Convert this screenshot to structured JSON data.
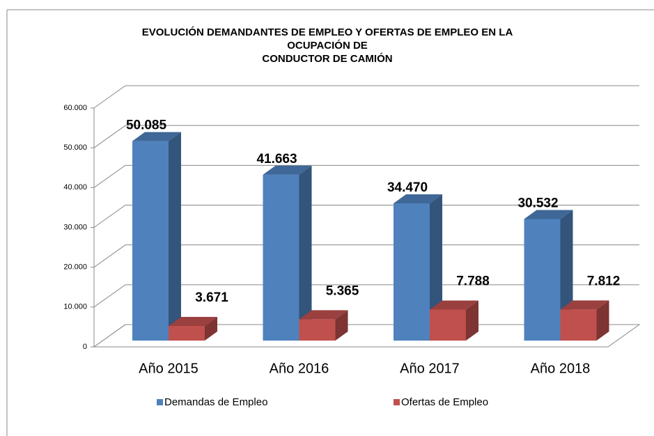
{
  "chart_data": {
    "type": "bar3d",
    "title": [
      "EVOLUCIÓN DEMANDANTES DE EMPLEO Y OFERTAS DE EMPLEO EN LA",
      "OCUPACIÓN DE",
      "CONDUCTOR DE CAMIÓN"
    ],
    "categories": [
      "Año 2015",
      "Año 2016",
      "Año 2017",
      "Año 2018"
    ],
    "series": [
      {
        "name": "Demandas de Empleo",
        "color": "#4f81bd",
        "values": [
          50085,
          41663,
          34470,
          30532
        ],
        "value_labels": [
          "50.085",
          "41.663",
          "34.470",
          "30.532"
        ]
      },
      {
        "name": "Ofertas de Empleo",
        "color": "#c0504d",
        "values": [
          3671,
          5365,
          7788,
          7812
        ],
        "value_labels": [
          "3.671",
          "5.365",
          "7.788",
          "7.812"
        ]
      }
    ],
    "ylim": [
      0,
      60000
    ],
    "yticks": [
      0,
      {
        "value": 10000,
        "label": "10.000"
      },
      {
        "value": 20000,
        "label": "20.000"
      },
      {
        "value": 30000,
        "label": "30.000"
      },
      {
        "value": 40000,
        "label": "40.000"
      },
      {
        "value": 50000,
        "label": "50.000"
      },
      {
        "value": 60000,
        "label": "60.000"
      }
    ],
    "grid": true,
    "legend": "bottom"
  }
}
